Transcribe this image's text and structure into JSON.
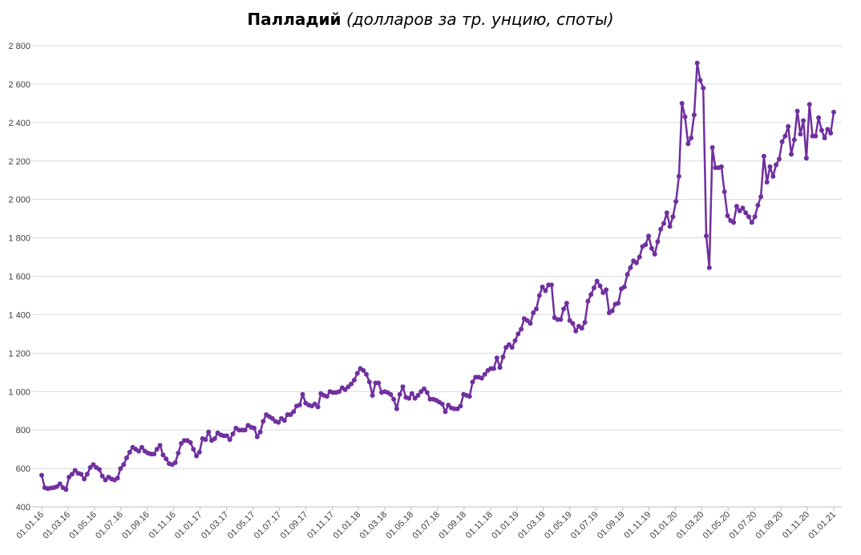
{
  "chart_data": {
    "type": "line",
    "title_bold": "Палладий",
    "title_italic": "(долларов за тр. унцию, споты)",
    "xlabel": "",
    "ylabel": "",
    "x_start": "01.01.16",
    "x_end": "01.01.21",
    "ylim": [
      400,
      2800
    ],
    "yticks": [
      400,
      600,
      800,
      1000,
      1200,
      1400,
      1600,
      1800,
      2000,
      2200,
      2400,
      2600,
      2800
    ],
    "ytick_labels": [
      "400",
      "600",
      "800",
      "1 000",
      "1 200",
      "1 400",
      "1 600",
      "1 800",
      "2 000",
      "2 200",
      "2 400",
      "2 600",
      "2 800"
    ],
    "xtick_labels": [
      "01.01.16",
      "01.03.16",
      "01.05.16",
      "01.07.16",
      "01.09.16",
      "01.11.16",
      "01.01.17",
      "01.03.17",
      "01.05.17",
      "01.07.17",
      "01.09.17",
      "01.11.17",
      "01.01.18",
      "01.03.18",
      "01.05.18",
      "01.07.18",
      "01.09.18",
      "01.11.18",
      "01.01.19",
      "01.03.19",
      "01.05.19",
      "01.07.19",
      "01.09.19",
      "01.11.19",
      "01.01.20",
      "01.03.20",
      "01.05.20",
      "01.07.20",
      "01.09.20",
      "01.11.20",
      "01.01.21"
    ],
    "grid": true,
    "legend": "none",
    "color": "#7030A0",
    "values": [
      565,
      500,
      495,
      498,
      500,
      505,
      520,
      500,
      490,
      555,
      570,
      590,
      575,
      570,
      545,
      570,
      605,
      620,
      605,
      595,
      560,
      540,
      555,
      545,
      540,
      550,
      600,
      620,
      655,
      685,
      710,
      700,
      690,
      710,
      690,
      680,
      675,
      675,
      700,
      720,
      670,
      650,
      625,
      620,
      630,
      680,
      730,
      745,
      745,
      735,
      700,
      665,
      685,
      755,
      750,
      790,
      745,
      755,
      785,
      775,
      770,
      770,
      750,
      780,
      810,
      800,
      800,
      800,
      825,
      815,
      810,
      765,
      790,
      845,
      880,
      870,
      860,
      845,
      840,
      860,
      850,
      880,
      880,
      895,
      925,
      930,
      985,
      940,
      930,
      925,
      935,
      920,
      990,
      980,
      975,
      1000,
      995,
      995,
      1000,
      1020,
      1010,
      1025,
      1040,
      1060,
      1095,
      1120,
      1110,
      1090,
      1050,
      980,
      1045,
      1045,
      995,
      1000,
      995,
      985,
      960,
      910,
      985,
      1025,
      970,
      965,
      990,
      965,
      980,
      1000,
      1015,
      995,
      960,
      960,
      955,
      945,
      935,
      895,
      930,
      915,
      910,
      910,
      925,
      985,
      980,
      975,
      1050,
      1075,
      1075,
      1070,
      1090,
      1110,
      1120,
      1120,
      1175,
      1125,
      1180,
      1230,
      1245,
      1230,
      1265,
      1300,
      1325,
      1380,
      1370,
      1355,
      1410,
      1430,
      1500,
      1545,
      1525,
      1555,
      1555,
      1385,
      1375,
      1375,
      1430,
      1460,
      1370,
      1355,
      1315,
      1340,
      1330,
      1360,
      1470,
      1505,
      1540,
      1575,
      1550,
      1515,
      1530,
      1410,
      1420,
      1455,
      1460,
      1535,
      1545,
      1610,
      1645,
      1680,
      1670,
      1700,
      1755,
      1765,
      1810,
      1745,
      1715,
      1780,
      1845,
      1875,
      1930,
      1860,
      1910,
      1990,
      2120,
      2500,
      2430,
      2290,
      2320,
      2440,
      2710,
      2620,
      2580,
      1810,
      1645,
      2270,
      2165,
      2165,
      2170,
      2040,
      1915,
      1890,
      1880,
      1965,
      1940,
      1955,
      1930,
      1910,
      1880,
      1910,
      1970,
      2015,
      2225,
      2090,
      2170,
      2120,
      2180,
      2210,
      2300,
      2330,
      2380,
      2235,
      2310,
      2460,
      2340,
      2410,
      2215,
      2495,
      2330,
      2330,
      2425,
      2360,
      2320,
      2365,
      2345,
      2455
    ]
  }
}
